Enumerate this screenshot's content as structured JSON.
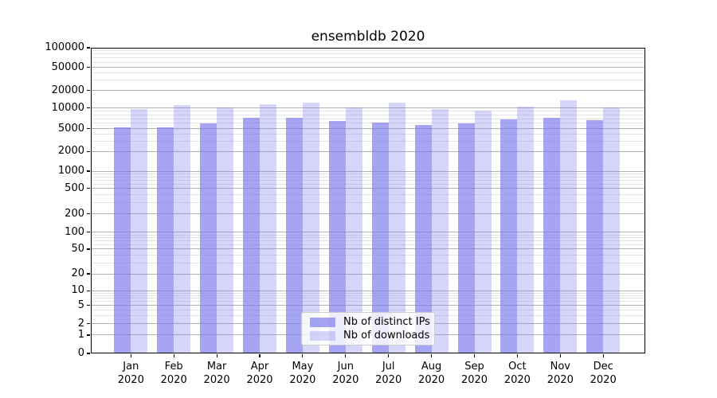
{
  "title": "ensembldb 2020",
  "chart_data": {
    "type": "bar",
    "title": "ensembldb 2020",
    "categories": [
      "Jan",
      "Feb",
      "Mar",
      "Apr",
      "May",
      "Jun",
      "Jul",
      "Aug",
      "Sep",
      "Oct",
      "Nov",
      "Dec"
    ],
    "x_year_label": "2020",
    "series": [
      {
        "name": "Nb of distinct IPs",
        "color": "rgba(119,119,238,0.66)",
        "values": [
          5200,
          5200,
          5900,
          7300,
          7200,
          6400,
          6100,
          5600,
          5900,
          6900,
          7300,
          6600
        ]
      },
      {
        "name": "Nb of downloads",
        "color": "rgba(119,119,238,0.30)",
        "values": [
          9600,
          11400,
          10300,
          11600,
          12400,
          10200,
          12400,
          9800,
          9100,
          10500,
          13800,
          10200
        ]
      }
    ],
    "y_ticks": [
      0,
      1,
      2,
      5,
      10,
      20,
      50,
      100,
      200,
      500,
      1000,
      2000,
      5000,
      10000,
      20000,
      50000,
      100000
    ],
    "ylim": [
      0,
      100000
    ],
    "yscale": "symlog",
    "grid": true,
    "legend": {
      "position": "lower-center",
      "entries": [
        "Nb of distinct IPs",
        "Nb of downloads"
      ]
    }
  },
  "colors": {
    "background": "#ffffff",
    "axis": "#000000",
    "grid_major": "#b3b3b3",
    "grid_minor": "#e4e4e4",
    "legend_bg": "rgba(255,255,255,0.8)",
    "legend_border": "#cccccc",
    "text": "#000000"
  }
}
